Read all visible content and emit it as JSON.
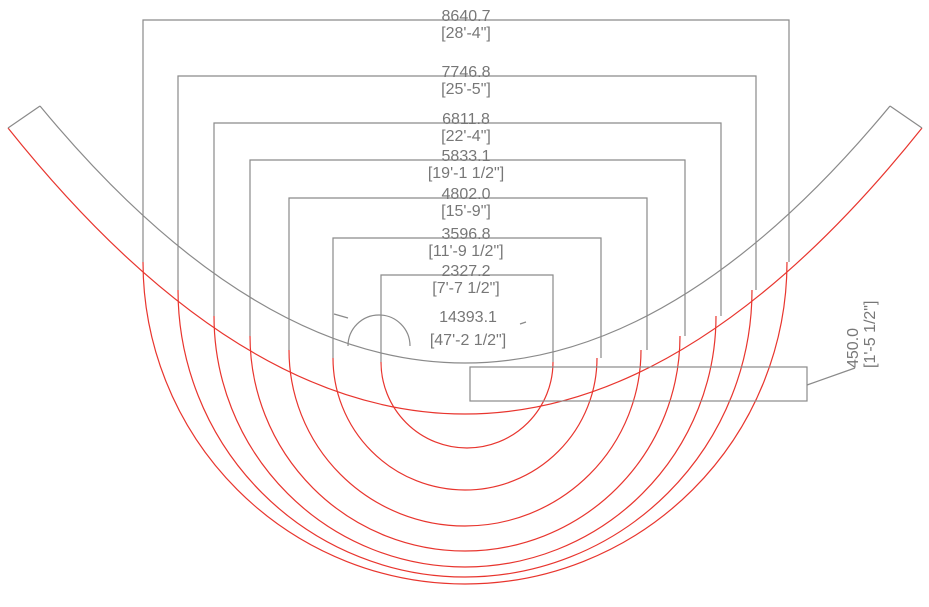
{
  "dimensions": [
    {
      "id": "w8640",
      "metric": "8640.7",
      "imperial": "[28'-4\"]"
    },
    {
      "id": "w7746",
      "metric": "7746.8",
      "imperial": "[25'-5\"]"
    },
    {
      "id": "w6811",
      "metric": "6811.8",
      "imperial": "[22'-4\"]"
    },
    {
      "id": "w5833",
      "metric": "5833.1",
      "imperial": "[19'-1 1/2\"]"
    },
    {
      "id": "w4802",
      "metric": "4802.0",
      "imperial": "[15'-9\"]"
    },
    {
      "id": "w3596",
      "metric": "3596.8",
      "imperial": "[11'-9 1/2\"]"
    },
    {
      "id": "w2327",
      "metric": "2327.2",
      "imperial": "[7'-7 1/2\"]"
    }
  ],
  "arc_length": {
    "metric": "14393.1",
    "imperial": "[47'-2 1/2\"]"
  },
  "thickness": {
    "metric": "450.0",
    "imperial": "[1'-5 1/2\"]"
  },
  "colors": {
    "dimension": "#8a8a8a",
    "geometry": "#e8352e",
    "text": "#777777"
  }
}
